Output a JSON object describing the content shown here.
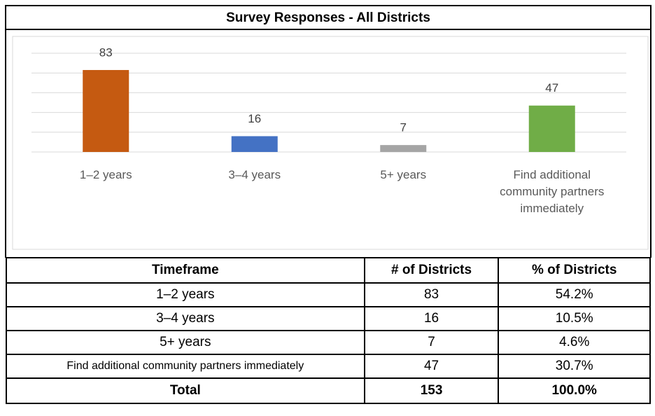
{
  "chart_data": {
    "type": "bar",
    "title": "Survey Responses - All Districts",
    "categories": [
      "1–2 years",
      "3–4 years",
      "5+ years",
      "Find additional community partners immediately"
    ],
    "values": [
      83,
      16,
      7,
      47
    ],
    "colors": [
      "#c55a11",
      "#4472c4",
      "#a5a5a5",
      "#70ad47"
    ],
    "ylim": [
      0,
      100
    ],
    "yticks": [
      0,
      20,
      40,
      60,
      80,
      100
    ],
    "grid": true
  },
  "table": {
    "header": [
      "Timeframe",
      "# of Districts",
      "% of Districts"
    ],
    "rows": [
      [
        "1–2 years",
        "83",
        "54.2%"
      ],
      [
        "3–4 years",
        "16",
        "10.5%"
      ],
      [
        "5+ years",
        "7",
        "4.6%"
      ],
      [
        "Find additional community partners immediately",
        "47",
        "30.7%"
      ]
    ],
    "total": [
      "Total",
      "153",
      "100.0%"
    ]
  }
}
